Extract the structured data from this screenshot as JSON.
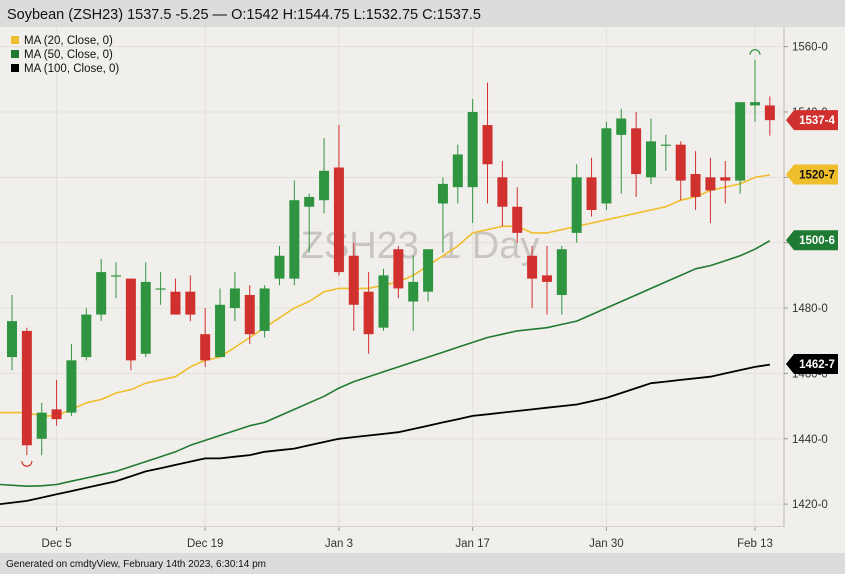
{
  "header": {
    "title": "Soybean (ZSH23) 1537.5 -5.25 — O:1542 H:1544.75 L:1532.75 C:1537.5"
  },
  "legend": [
    {
      "label": "MA (20, Close, 0)",
      "color": "#f0be2c"
    },
    {
      "label": "MA (50, Close, 0)",
      "color": "#1f7a33"
    },
    {
      "label": "MA (100, Close, 0)",
      "color": "#000000"
    }
  ],
  "watermark": "ZSH23, 1 Day",
  "footer": "Generated on cmdtyView, February 14th 2023, 6:30:14 pm",
  "colors": {
    "up": "#2e9440",
    "down": "#d0312f",
    "background": "#f1efeb",
    "grid": "#e3e0db"
  },
  "chart_data": {
    "type": "candlestick",
    "title": "Soybean (ZSH23) 1537.5 -5.25 — O:1542 H:1544.75 L:1532.75 C:1537.5",
    "y_ticks": [
      "1420-0",
      "1440-0",
      "1460-0",
      "1480-0",
      "1500-0",
      "1520-0",
      "1540-0",
      "1560-0"
    ],
    "ylim": [
      1413,
      1566
    ],
    "x_ticks": [
      {
        "label": "Dec 5",
        "index": 3
      },
      {
        "label": "Dec 19",
        "index": 13
      },
      {
        "label": "Jan 3",
        "index": 22
      },
      {
        "label": "Jan 17",
        "index": 31
      },
      {
        "label": "Jan 30",
        "index": 40
      },
      {
        "label": "Feb 13",
        "index": 50
      }
    ],
    "candles": [
      {
        "o": 1465,
        "h": 1484,
        "l": 1461,
        "c": 1476
      },
      {
        "o": 1473,
        "h": 1474,
        "l": 1435,
        "c": 1438
      },
      {
        "o": 1440,
        "h": 1451,
        "l": 1435,
        "c": 1448
      },
      {
        "o": 1449,
        "h": 1458,
        "l": 1444,
        "c": 1446
      },
      {
        "o": 1448,
        "h": 1469,
        "l": 1447,
        "c": 1464
      },
      {
        "o": 1465,
        "h": 1480,
        "l": 1464,
        "c": 1478
      },
      {
        "o": 1478,
        "h": 1495,
        "l": 1476,
        "c": 1491
      },
      {
        "o": 1490,
        "h": 1494,
        "l": 1483,
        "c": 1490
      },
      {
        "o": 1489,
        "h": 1489,
        "l": 1461,
        "c": 1464
      },
      {
        "o": 1466,
        "h": 1494,
        "l": 1465,
        "c": 1488
      },
      {
        "o": 1486,
        "h": 1491,
        "l": 1481,
        "c": 1486
      },
      {
        "o": 1485,
        "h": 1489,
        "l": 1478,
        "c": 1478
      },
      {
        "o": 1485,
        "h": 1490,
        "l": 1476,
        "c": 1478
      },
      {
        "o": 1472,
        "h": 1480,
        "l": 1462,
        "c": 1464
      },
      {
        "o": 1465,
        "h": 1486,
        "l": 1465,
        "c": 1481
      },
      {
        "o": 1480,
        "h": 1491,
        "l": 1476,
        "c": 1486
      },
      {
        "o": 1484,
        "h": 1487,
        "l": 1469,
        "c": 1472
      },
      {
        "o": 1473,
        "h": 1487,
        "l": 1471,
        "c": 1486
      },
      {
        "o": 1489,
        "h": 1499,
        "l": 1487,
        "c": 1496
      },
      {
        "o": 1489,
        "h": 1519,
        "l": 1487,
        "c": 1513
      },
      {
        "o": 1511,
        "h": 1515,
        "l": 1497,
        "c": 1514
      },
      {
        "o": 1513,
        "h": 1532,
        "l": 1509,
        "c": 1522
      },
      {
        "o": 1523,
        "h": 1536,
        "l": 1490,
        "c": 1491
      },
      {
        "o": 1496,
        "h": 1500,
        "l": 1473,
        "c": 1481
      },
      {
        "o": 1485,
        "h": 1491,
        "l": 1466,
        "c": 1472
      },
      {
        "o": 1474,
        "h": 1492,
        "l": 1473,
        "c": 1490
      },
      {
        "o": 1498,
        "h": 1499,
        "l": 1483,
        "c": 1486
      },
      {
        "o": 1482,
        "h": 1496,
        "l": 1473,
        "c": 1488
      },
      {
        "o": 1485,
        "h": 1497,
        "l": 1482,
        "c": 1498
      },
      {
        "o": 1512,
        "h": 1520,
        "l": 1497,
        "c": 1518
      },
      {
        "o": 1517,
        "h": 1530,
        "l": 1512,
        "c": 1527
      },
      {
        "o": 1517,
        "h": 1544,
        "l": 1506,
        "c": 1540
      },
      {
        "o": 1536,
        "h": 1549,
        "l": 1512,
        "c": 1524
      },
      {
        "o": 1520,
        "h": 1525,
        "l": 1505,
        "c": 1511
      },
      {
        "o": 1511,
        "h": 1517,
        "l": 1500,
        "c": 1503
      },
      {
        "o": 1496,
        "h": 1499,
        "l": 1480,
        "c": 1489
      },
      {
        "o": 1490,
        "h": 1499,
        "l": 1478,
        "c": 1488
      },
      {
        "o": 1484,
        "h": 1499,
        "l": 1478,
        "c": 1498
      },
      {
        "o": 1503,
        "h": 1524,
        "l": 1500,
        "c": 1520
      },
      {
        "o": 1520,
        "h": 1526,
        "l": 1508,
        "c": 1510
      },
      {
        "o": 1512,
        "h": 1537,
        "l": 1510,
        "c": 1535
      },
      {
        "o": 1533,
        "h": 1541,
        "l": 1515,
        "c": 1538
      },
      {
        "o": 1535,
        "h": 1540,
        "l": 1514,
        "c": 1521
      },
      {
        "o": 1520,
        "h": 1538,
        "l": 1518,
        "c": 1531
      },
      {
        "o": 1530,
        "h": 1533,
        "l": 1522,
        "c": 1530
      },
      {
        "o": 1530,
        "h": 1531,
        "l": 1513,
        "c": 1519
      },
      {
        "o": 1521,
        "h": 1528,
        "l": 1510,
        "c": 1514
      },
      {
        "o": 1520,
        "h": 1526,
        "l": 1506,
        "c": 1516
      },
      {
        "o": 1520,
        "h": 1525,
        "l": 1512,
        "c": 1519
      },
      {
        "o": 1519,
        "h": 1542,
        "l": 1515,
        "c": 1543
      },
      {
        "o": 1542,
        "h": 1556,
        "l": 1537,
        "c": 1543
      },
      {
        "o": 1542,
        "h": 1544.75,
        "l": 1532.75,
        "c": 1537.5
      }
    ],
    "series": [
      {
        "name": "MA (20, Close, 0)",
        "color": "#f0be2c",
        "values": [
          1448,
          1448,
          1447,
          1447,
          1449,
          1451,
          1452,
          1454,
          1455,
          1457,
          1458,
          1459,
          1462,
          1464,
          1465,
          1468,
          1471,
          1474,
          1477,
          1480,
          1482,
          1485,
          1486,
          1486,
          1486,
          1487,
          1488,
          1490,
          1493,
          1496,
          1499,
          1503,
          1504,
          1505,
          1505,
          1503,
          1503,
          1504,
          1505,
          1506,
          1507,
          1508,
          1509,
          1510,
          1511,
          1513,
          1514,
          1516,
          1517,
          1518,
          1520,
          1520.7
        ]
      },
      {
        "name": "MA (50, Close, 0)",
        "color": "#1f7a33",
        "values": [
          1426,
          1425.5,
          1425.6,
          1426,
          1427,
          1428,
          1429,
          1430,
          1431.5,
          1433,
          1434.5,
          1436,
          1438,
          1439.5,
          1441,
          1442.5,
          1444,
          1445,
          1447,
          1449,
          1451,
          1453,
          1455.5,
          1457.5,
          1459,
          1460.5,
          1462,
          1463.5,
          1465,
          1466.5,
          1468,
          1469.5,
          1471,
          1472,
          1473,
          1473.5,
          1474,
          1475,
          1476,
          1478,
          1480,
          1482,
          1484,
          1486,
          1488,
          1490,
          1492,
          1493,
          1494.5,
          1496,
          1498,
          1500.6
        ]
      },
      {
        "name": "MA (100, Close, 0)",
        "color": "#000000",
        "values": [
          1420,
          1421,
          1422,
          1423,
          1424,
          1425,
          1426,
          1427,
          1428.5,
          1430,
          1431,
          1432,
          1433,
          1434,
          1434,
          1434.5,
          1435,
          1436,
          1436.5,
          1437,
          1438,
          1439,
          1440,
          1440.5,
          1441,
          1441.5,
          1442,
          1443,
          1444,
          1445,
          1446,
          1447,
          1447.5,
          1448,
          1448.5,
          1449,
          1449.5,
          1450,
          1450.5,
          1451.5,
          1452.5,
          1454,
          1455.5,
          1457,
          1457.5,
          1458,
          1458.5,
          1459,
          1460,
          1461,
          1462,
          1462.7
        ]
      }
    ],
    "price_labels": [
      {
        "text": "1537-4",
        "value": 1537.5,
        "bg": "#d0312f",
        "fg": "#ffffff"
      },
      {
        "text": "1520-7",
        "value": 1520.875,
        "bg": "#f0be2c",
        "fg": "#111111"
      },
      {
        "text": "1500-6",
        "value": 1500.75,
        "bg": "#1f7a33",
        "fg": "#ffffff"
      },
      {
        "text": "1462-7",
        "value": 1462.875,
        "bg": "#000000",
        "fg": "#ffffff"
      }
    ],
    "grid": true,
    "legend_position": "top-left"
  }
}
